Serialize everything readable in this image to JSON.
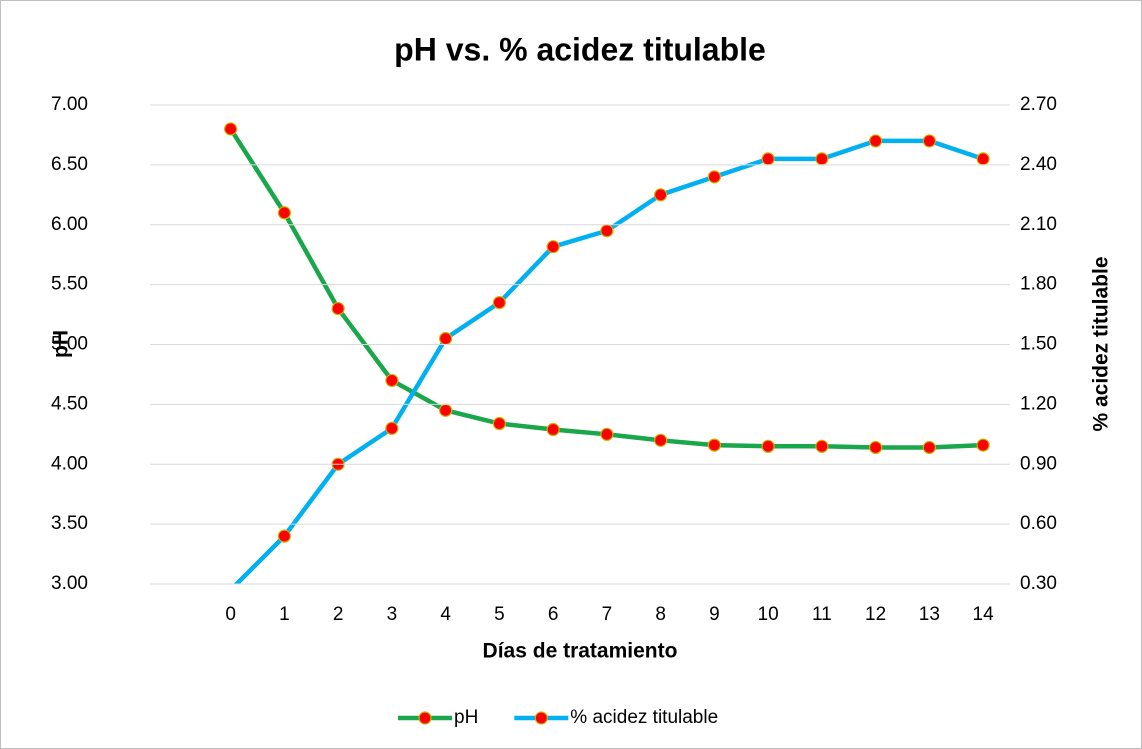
{
  "chart_data": {
    "type": "line",
    "title": "pH vs. % acidez titulable",
    "x_label": "Días de tratamiento",
    "y_label": "pH",
    "y2_label": "% acidez titulable",
    "categories": [
      null,
      "0",
      "1",
      "2",
      "3",
      "4",
      "5",
      "6",
      "7",
      "8",
      "9",
      "10",
      "11",
      "12",
      "13",
      "14"
    ],
    "series": [
      {
        "name": "pH",
        "color": "#1aa64a",
        "marker_color": "#ff0000",
        "values": [
          null,
          6.8,
          6.1,
          5.3,
          4.7,
          4.45,
          4.34,
          4.29,
          4.25,
          4.2,
          4.16,
          4.15,
          4.15,
          4.14,
          4.14,
          4.16
        ]
      },
      {
        "name": "% acidez titulable",
        "color": "#00b0f0",
        "marker_color": "#ff0000",
        "axis": "y2",
        "values": [
          null,
          0.27,
          0.54,
          0.9,
          1.08,
          1.53,
          1.71,
          1.99,
          2.07,
          2.25,
          2.34,
          2.43,
          2.43,
          2.52,
          2.52,
          2.43
        ]
      }
    ],
    "ylim": [
      3,
      7
    ],
    "yticks": [
      {
        "value": 3,
        "label": "3.00"
      },
      {
        "value": 3.5,
        "label": "3.50"
      },
      {
        "value": 4,
        "label": "4.00"
      },
      {
        "value": 4.5,
        "label": "4.50"
      },
      {
        "value": 5,
        "label": "5.00"
      },
      {
        "value": 5.5,
        "label": "5.50"
      },
      {
        "value": 6,
        "label": "6.00"
      },
      {
        "value": 6.5,
        "label": "6.50"
      },
      {
        "value": 7,
        "label": "7.00"
      }
    ],
    "y2lim": [
      0.3,
      2.7
    ],
    "y2ticks": [
      {
        "value": 0.3,
        "label": "0.30"
      },
      {
        "value": 0.6,
        "label": "0.60"
      },
      {
        "value": 0.9,
        "label": "0.90"
      },
      {
        "value": 1.2,
        "label": "1.20"
      },
      {
        "value": 1.5,
        "label": "1.50"
      },
      {
        "value": 1.8,
        "label": "1.80"
      },
      {
        "value": 2.1,
        "label": "2.10"
      },
      {
        "value": 2.4,
        "label": "2.40"
      },
      {
        "value": 2.7,
        "label": "2.70"
      }
    ],
    "grid": true,
    "legend": "bottom"
  }
}
